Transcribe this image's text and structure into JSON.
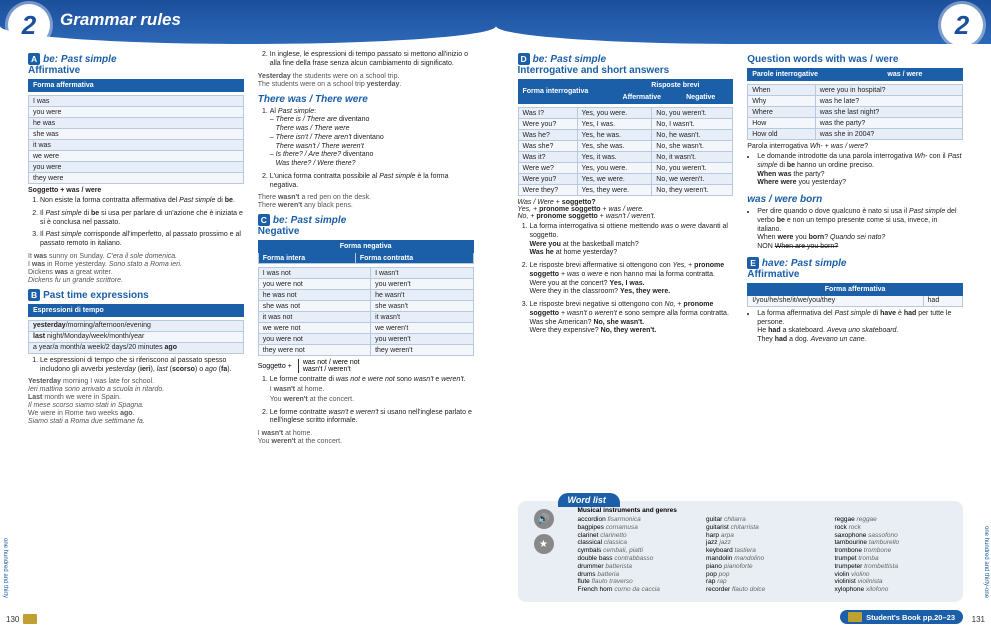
{
  "unit_number": "2",
  "header_title": "Grammar rules",
  "left": {
    "A": {
      "title_badge": "A",
      "title_html": "be: Past simple",
      "subtitle": "Affirmative",
      "table_header": "Forma affermativa",
      "table_rows": [
        "I was",
        "you were",
        "he was",
        "she was",
        "it was",
        "we were",
        "you were",
        "they were"
      ],
      "soggetto": "Soggetto + was / were",
      "rules": [
        "Non esiste la forma contratta affermativa del <em>Past simple</em> di <strong>be</strong>.",
        "Il <em>Past simple</em> di <strong>be</strong> si usa per parlare di un'azione che è iniziata e si è conclusa nel passato.",
        "Il <em>Past simple</em> corrisponde all'imperfetto, al passato prossimo e al passato remoto in italiano."
      ],
      "examples": [
        "It <strong>was</strong> sunny on Sunday. <em>C'era il sole domenica.</em>",
        "I <strong>was</strong> in Rome yesterday. <em>Sono stato a Roma ieri.</em>",
        "Dickens <strong>was</strong> a great writer.",
        "<em>Dickens fu un grande scrittore.</em>"
      ]
    },
    "B": {
      "title_badge": "B",
      "title": "Past time expressions",
      "table_header": "Espressioni di tempo",
      "table_rows": [
        "<strong>yesterday</strong>/morning/afternoon/evening",
        "<strong>last</strong> night/Monday/week/month/year",
        "a year/a month/a week/2 days/20 minutes <strong>ago</strong>"
      ],
      "rule": "Le espressioni di tempo che si riferiscono al passato spesso includono gli avverbi <em>yesterday</em> (<strong>ieri</strong>), <em>last</em> (<strong>scorso</strong>) o <em>ago</em> (<strong>fa</strong>).",
      "examples": [
        "<strong>Yesterday</strong> morning I was late for school.",
        "<em>Ieri mattina sono arrivato a scuola in ritardo.</em>",
        "<strong>Last</strong> month we were in Spain.",
        "<em>Il mese scorso siamo stati in Spagna.</em>",
        "We were in Rome two weeks <strong>ago</strong>.",
        "<em>Siamo stati a Roma due settimane fa.</em>"
      ]
    },
    "col2_rule2": "In inglese, le espressioni di tempo passato si mettono all'inizio o alla fine della frase senza alcun cambiamento di significato.",
    "col2_ex2": [
      "<strong>Yesterday</strong> the students were on a school trip.",
      "The students were on a school trip <strong>yesterday</strong>."
    ],
    "there": {
      "title": "There was / There were",
      "rules": [
        "Al <em>Past simple</em>:<br>– <em>There is / There are</em> diventano<br>&nbsp;&nbsp;&nbsp;<em>There was / There were</em><br>– <em>There isn't / There aren't</em> diventano<br>&nbsp;&nbsp;&nbsp;<em>There wasn't / There weren't</em><br>– <em>Is there? / Are there?</em> diventano<br>&nbsp;&nbsp;&nbsp;<em>Was there? / Were there?</em>",
        "L'unica forma contratta possibile al <em>Past simple</em> è la forma negativa."
      ],
      "examples": [
        "There <strong>wasn't</strong> a red pen on the desk.",
        "There <strong>weren't</strong> any black pens."
      ]
    },
    "C": {
      "title_badge": "C",
      "title_html": "be: Past simple",
      "subtitle": "Negative",
      "table_header": "Forma negativa",
      "table_h1": "Forma intera",
      "table_h2": "Forma contratta",
      "rows": [
        [
          "I was not",
          "I wasn't"
        ],
        [
          "you were not",
          "you weren't"
        ],
        [
          "he was not",
          "he wasn't"
        ],
        [
          "she was not",
          "she wasn't"
        ],
        [
          "it was not",
          "it wasn't"
        ],
        [
          "we were not",
          "we weren't"
        ],
        [
          "you were not",
          "you weren't"
        ],
        [
          "they were not",
          "they weren't"
        ]
      ],
      "soggetto_label": "Soggetto +",
      "soggetto_opts": [
        "was not / were not",
        "wasn't / weren't"
      ],
      "rules": [
        "Le forme contratte di <em>was not</em> e <em>were not</em> sono <em>wasn't</em> e <em>weren't</em>.",
        "Le forme contratte <em>wasn't</em> e <em>weren't</em> si usano nell'inglese parlato e nell'inglese scritto informale."
      ],
      "examples": [
        "I <strong>wasn't</strong> at home.",
        "You <strong>weren't</strong> at the concert."
      ]
    }
  },
  "right": {
    "D": {
      "title_badge": "D",
      "title_html": "be: Past simple",
      "subtitle": "Interrogative and short answers",
      "th1": "Forma interrogativa",
      "th2": "Risposte brevi",
      "sh1": "Affermative",
      "sh2": "Negative",
      "rows": [
        [
          "Was I?",
          "Yes, you were.",
          "No, you weren't."
        ],
        [
          "Were you?",
          "Yes, I was.",
          "No, I wasn't."
        ],
        [
          "Was he?",
          "Yes, he was.",
          "No, he wasn't."
        ],
        [
          "Was she?",
          "Yes, she was.",
          "No, she wasn't."
        ],
        [
          "Was it?",
          "Yes, it was.",
          "No, it wasn't."
        ],
        [
          "Were we?",
          "Yes, you were.",
          "No, you weren't."
        ],
        [
          "Were you?",
          "Yes, we were.",
          "No, we weren't."
        ],
        [
          "Were they?",
          "Yes, they were.",
          "No, they weren't."
        ]
      ],
      "note": "<em>Was / Were</em> + <strong>soggetto?</strong><br><em>Yes,</em> + <strong>pronome soggetto</strong> + <em>was / were.</em><br><em>No,</em> + <strong>pronome soggetto</strong> + <em>wasn't / weren't.</em>",
      "rules": [
        "La forma interrogativa si ottiene mettendo <em>was</em> o <em>were</em> davanti al soggetto.<br><strong>Were you</strong> at the basketball match?<br><strong>Was he</strong> at home yesterday?",
        "Le risposte brevi affermative si ottengono con <em>Yes,</em> + <strong>pronome soggetto</strong> + <em>was</em> o <em>were</em> e non hanno mai la forma contratta.<br>Were you at the concert? <strong>Yes, I was.</strong><br>Were they in the classroom? <strong>Yes, they were.</strong>",
        "Le risposte brevi negative si ottengono con <em>No,</em> + <strong>pronome soggetto</strong> + <em>wasn't</em> o <em>weren't</em> e sono sempre alla forma contratta.<br>Was she American? <strong>No, she wasn't.</strong><br>Were they expensive? <strong>No, they weren't.</strong>"
      ]
    },
    "Q": {
      "title": "Question words with was / were",
      "th1": "Parole interrogative",
      "th2": "was / were",
      "rows": [
        [
          "When",
          "were you in hospital?"
        ],
        [
          "Why",
          "was he late?"
        ],
        [
          "Where",
          "was she last night?"
        ],
        [
          "How",
          "was the party?"
        ],
        [
          "How old",
          "was she in 2004?"
        ]
      ],
      "note": "Parola interrogativa <em>Wh-</em> + <em>was / were</em>?",
      "bullets": [
        "Le domande introdotte da una parola interrogativa <em>Wh-</em> con il <em>Past simple</em> di <strong>be</strong> hanno un ordine preciso.<br><strong>When was</strong> the party?<br><strong>Where were</strong> you yesterday?"
      ]
    },
    "born": {
      "title": "was / were born",
      "bullets": [
        "Per dire quando o dove qualcuno è nato si usa il <em>Past simple</em> del verbo <strong>be</strong> e non un tempo presente come si usa, invece, in italiano.<br>When <strong>were</strong> you <strong>born</strong>? <em>Quando sei nato?</em><br>NON <s>When are you born?</s>"
      ]
    },
    "E": {
      "title_badge": "E",
      "title_html": "have: Past simple",
      "subtitle": "Affirmative",
      "table_header": "Forma affermativa",
      "row": [
        "I/you/he/she/it/we/you/they",
        "had"
      ],
      "bullets": [
        "La forma affermativa del <em>Past simple</em> di <strong>have</strong> è <strong>had</strong> per tutte le persone.<br>He <strong>had</strong> a skateboard. <em>Aveva uno skateboard.</em><br>They <strong>had</strong> a dog. <em>Avevano un cane.</em>"
      ]
    }
  },
  "wordlist": {
    "title": "Word list",
    "heading": "Musical instruments and genres",
    "items": [
      [
        "accordion",
        "fisarmonica"
      ],
      [
        "bagpipes",
        "cornamusa"
      ],
      [
        "clarinet",
        "clarinetto"
      ],
      [
        "classical",
        "classica"
      ],
      [
        "cymbals",
        "cembali, piatti"
      ],
      [
        "double bass",
        "contrabbasso"
      ],
      [
        "drummer",
        "batterista"
      ],
      [
        "drums",
        "batteria"
      ],
      [
        "flute",
        "flauto traverso"
      ],
      [
        "French horn",
        "corno da caccia"
      ],
      [
        "guitar",
        "chitarra"
      ],
      [
        "guitarist",
        "chitarrista"
      ],
      [
        "harp",
        "arpa"
      ],
      [
        "jazz",
        "jazz"
      ],
      [
        "keyboard",
        "tastiera"
      ],
      [
        "mandolin",
        "mandolino"
      ],
      [
        "piano",
        "pianoforte"
      ],
      [
        "pop",
        "pop"
      ],
      [
        "rap",
        "rap"
      ],
      [
        "recorder",
        "flauto dolce"
      ],
      [
        "reggae",
        "reggae"
      ],
      [
        "rock",
        "rock"
      ],
      [
        "saxophone",
        "sassofono"
      ],
      [
        "tambourine",
        "tamburello"
      ],
      [
        "trombone",
        "trombone"
      ],
      [
        "trumpet",
        "tromba"
      ],
      [
        "trumpeter",
        "trombettista"
      ],
      [
        "violin",
        "violino"
      ],
      [
        "violinist",
        "violinista"
      ],
      [
        "xylophone",
        "xilofono"
      ]
    ]
  },
  "footer": {
    "page_left": "130",
    "page_right": "131",
    "sidetext_left": "one hundred and thirty",
    "sidetext_right": "one hundred and thirty-one",
    "sb_ref": "Student's Book  pp.20–23"
  },
  "colors": {
    "accent": "#1b5fa8",
    "header_dark": "#1b4f9c",
    "table_row_bg": "#e8eef7"
  }
}
